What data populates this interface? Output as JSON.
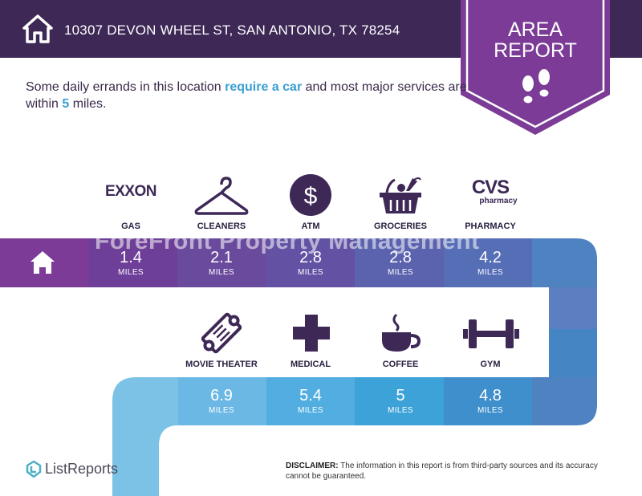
{
  "header": {
    "address": "10307 DEVON WHEEL ST, SAN ANTONIO, TX 78254"
  },
  "badge": {
    "line1": "AREA",
    "line2": "REPORT"
  },
  "intro": {
    "part1": "Some daily errands in this location ",
    "highlight1": "require a car",
    "part2": " and most major services are within ",
    "highlight2": "5",
    "part3": " miles."
  },
  "watermark": "ForeFront Property Management",
  "unit": "MILES",
  "row1": [
    {
      "label": "GAS",
      "distance": "1.4",
      "icon": "exxon-logo",
      "logo_text": "EXXON"
    },
    {
      "label": "CLEANERS",
      "distance": "2.1",
      "icon": "hanger-icon"
    },
    {
      "label": "ATM",
      "distance": "2.8",
      "icon": "dollar-icon",
      "icon_text": "$"
    },
    {
      "label": "GROCERIES",
      "distance": "2.8",
      "icon": "grocery-basket-icon"
    },
    {
      "label": "PHARMACY",
      "distance": "4.2",
      "icon": "cvs-logo",
      "logo_text": "CVS",
      "logo_sub": "pharmacy"
    }
  ],
  "row2": [
    {
      "label": "MOVIE THEATER",
      "distance": "6.9",
      "icon": "ticket-icon"
    },
    {
      "label": "MEDICAL",
      "distance": "5.4",
      "icon": "medical-cross-icon"
    },
    {
      "label": "COFFEE",
      "distance": "5",
      "icon": "coffee-cup-icon"
    },
    {
      "label": "GYM",
      "distance": "4.8",
      "icon": "dumbbell-icon"
    }
  ],
  "footer": {
    "brand": "ListReports",
    "disclaimer_label": "DISCLAIMER:",
    "disclaimer_text": " The information in this report is from third-party sources and its accuracy cannot be guaranteed."
  },
  "colors": {
    "header_bg": "#3d2856",
    "badge": "#7b3b96",
    "accent_blue": "#3aa0d2"
  }
}
